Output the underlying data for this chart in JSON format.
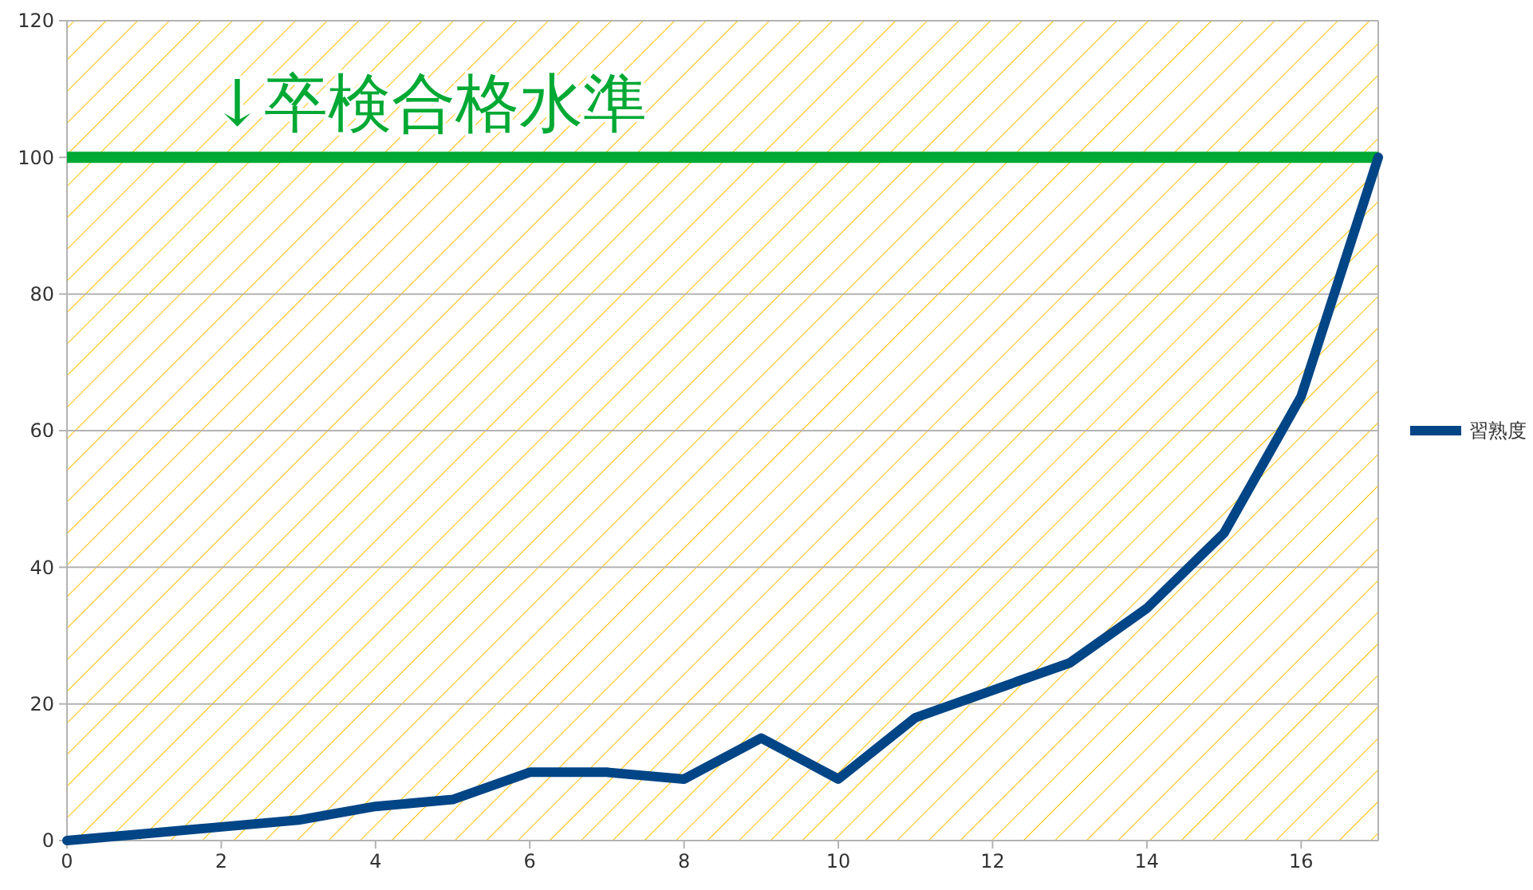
{
  "chart_data": {
    "type": "line",
    "x": [
      0,
      1,
      2,
      3,
      4,
      5,
      6,
      7,
      8,
      9,
      10,
      11,
      12,
      13,
      14,
      15,
      16,
      17
    ],
    "series": [
      {
        "name": "習熟度",
        "color": "#004586",
        "values": [
          0,
          1,
          2,
          3,
          5,
          6,
          10,
          10,
          9,
          15,
          9,
          18,
          22,
          26,
          34,
          45,
          65,
          100
        ]
      }
    ],
    "xlim": [
      0,
      17
    ],
    "xticks": [
      0,
      2,
      4,
      6,
      8,
      10,
      12,
      14,
      16
    ],
    "ylim": [
      0,
      120
    ],
    "yticks": [
      0,
      20,
      40,
      60,
      80,
      100,
      120
    ],
    "grid": "y",
    "legend": "right",
    "marker": "none",
    "line_style": "solid",
    "ref_lines": [
      {
        "axis": "y",
        "value": 100,
        "label": "↓卒検合格水準",
        "color": "#00a933"
      }
    ]
  }
}
